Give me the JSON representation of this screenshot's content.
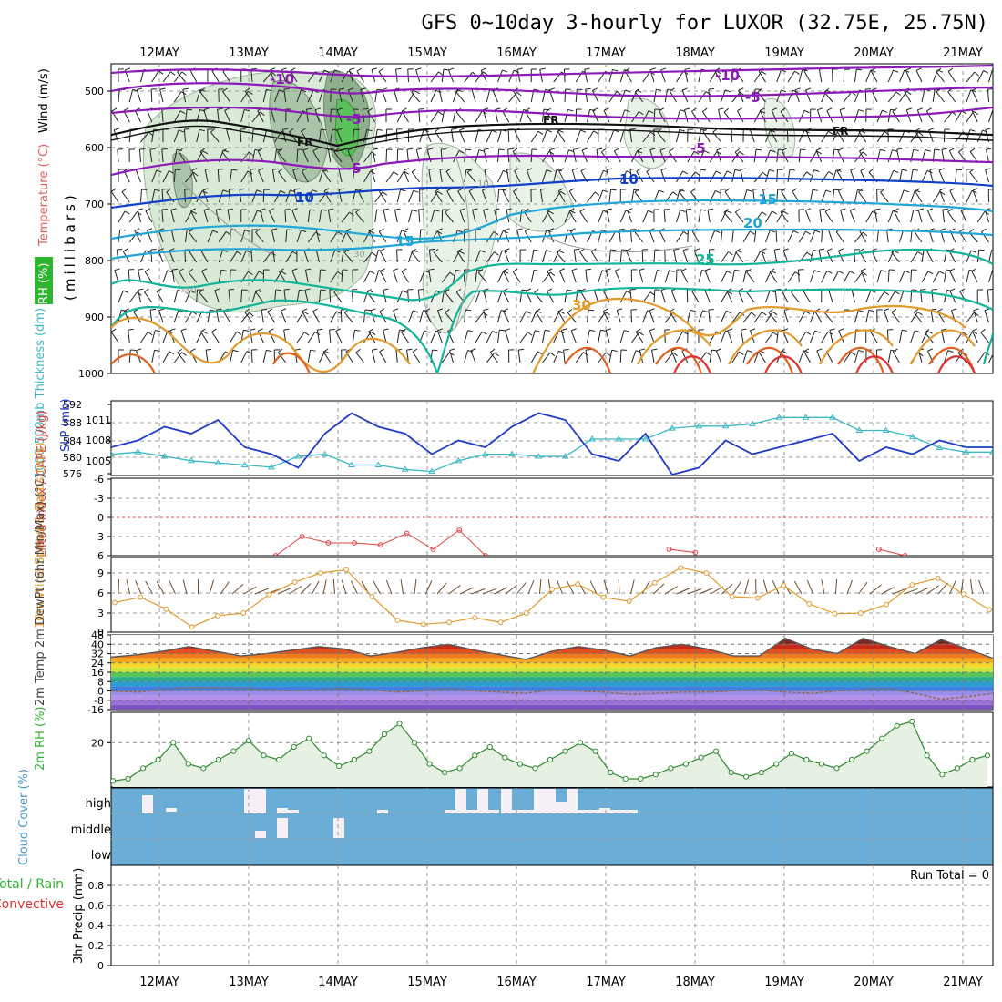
{
  "title": "GFS 0~10day 3-hourly for LUXOR (32.75E, 25.75N)",
  "dates": [
    "12MAY",
    "13MAY",
    "14MAY",
    "15MAY",
    "16MAY",
    "17MAY",
    "18MAY",
    "19MAY",
    "20MAY",
    "21MAY"
  ],
  "colors": {
    "purple": "#8B1AB8",
    "blue": "#1140C8",
    "cyan": "#21A6D8",
    "teal": "#13B59A",
    "orange": "#E39A2C",
    "red": "#E03030",
    "rhGreen": "#2FB52F",
    "cloud": "#6AAED8",
    "thick": "#3BB8C4",
    "slp": "#1E3CC8",
    "cape": "#C36BDB",
    "li": "#E04040"
  },
  "chart_data": [
    {
      "panel": "upper-air",
      "type": "contour",
      "ylabel_parts": {
        "rh": "RH (%)",
        "temp": "Temperature (°C)",
        "wind": "Wind (m/s)",
        "axis": "(millibars)"
      },
      "yticks": [
        "500",
        "600",
        "700",
        "800",
        "900",
        "1000"
      ],
      "labels": [
        "-10",
        "-10",
        "-5",
        "-5",
        "-5",
        "-5",
        "5",
        "FR",
        "FR",
        "FR",
        "10",
        "10",
        "-15",
        "20",
        "25",
        "15",
        "30",
        "30",
        "30",
        "30",
        "10"
      ]
    },
    {
      "panel": "thickness-slp",
      "type": "line",
      "ylabel_left": "1000-500mb Thickness (dm)",
      "ylabel_right": "SLP (mb)",
      "yticks_left": [
        "592",
        "588",
        "584",
        "580",
        "576"
      ],
      "yticks_right": [
        "1011",
        "1008",
        "1005"
      ],
      "series": [
        {
          "name": "SLP (mb)",
          "values": [
            1007,
            1008,
            1010,
            1009,
            1011,
            1007,
            1006,
            1004,
            1009,
            1012,
            1010,
            1009,
            1006,
            1008,
            1007,
            1010,
            1012,
            1011,
            1006,
            1005,
            1009,
            1003,
            1004,
            1008,
            1006,
            1007,
            1008,
            1009,
            1005,
            1007,
            1006,
            1008,
            1007,
            1007
          ]
        },
        {
          "name": "Thickness (dm)",
          "values": [
            580.5,
            581,
            580,
            579,
            578.5,
            578,
            577.5,
            580,
            580.5,
            578,
            578,
            577,
            576.5,
            579,
            580.5,
            580.5,
            580,
            580,
            584,
            584,
            584,
            586.5,
            587,
            587,
            587.5,
            589,
            589,
            589,
            586,
            586,
            584.5,
            582,
            581,
            581
          ]
        }
      ]
    },
    {
      "panel": "lifted-index-cape",
      "type": "line",
      "ylabel": "Lifted Index / CAPE (J/kg)",
      "yticks": [
        "-6",
        "-3",
        "0",
        "3",
        "6"
      ],
      "series": [
        {
          "name": "Lifted Index",
          "values": [
            null,
            null,
            null,
            null,
            null,
            null,
            6,
            3,
            4,
            4,
            4.3,
            2.5,
            5,
            2,
            6,
            null,
            null,
            null,
            null,
            null,
            null,
            5,
            5.5,
            null,
            null,
            null,
            null,
            null,
            null,
            5,
            6,
            null,
            null,
            null
          ]
        }
      ]
    },
    {
      "panel": "10m-wind",
      "type": "line",
      "ylabel": "10m Wind Speed & Barbs (m/s)",
      "yticks": [
        "0",
        "3",
        "6",
        "9"
      ],
      "series": [
        {
          "name": "10m Wind Speed",
          "values": [
            4.5,
            5.3,
            3.5,
            0.8,
            2.5,
            2.9,
            5.7,
            7.6,
            9,
            9.5,
            5.4,
            1.8,
            1.2,
            1.5,
            2.2,
            1.5,
            2.9,
            6.5,
            7.3,
            5.3,
            4.7,
            7.5,
            9.8,
            9,
            5.4,
            5.2,
            7.1,
            4.3,
            2.8,
            2.9,
            4.2,
            7.2,
            8.2,
            5.8,
            3.4
          ]
        }
      ]
    },
    {
      "panel": "2m-temp",
      "type": "area",
      "ylabel": "2m Temp 2m DewPt (6hr Min/Max) (°C)",
      "yticks": [
        "48",
        "40",
        "32",
        "24",
        "16",
        "8",
        "0",
        "-8",
        "-16"
      ],
      "series": [
        {
          "name": "2m Temp",
          "values": [
            29,
            31,
            34,
            38,
            34,
            30,
            32,
            35,
            38,
            36,
            30,
            33,
            37,
            40,
            35,
            31,
            27,
            34,
            38,
            35,
            30,
            37,
            40,
            36,
            30,
            30,
            45,
            36,
            32,
            45,
            38,
            32,
            44,
            36,
            28
          ]
        },
        {
          "name": "2m DewPt",
          "values": [
            0,
            -1,
            1,
            3,
            3,
            2,
            1,
            0,
            1,
            2,
            1,
            -1,
            0,
            2,
            0,
            -1,
            -2,
            1,
            0,
            -1,
            -3,
            -2,
            -1,
            -1,
            0,
            1,
            -1,
            -2,
            0,
            1,
            2,
            -2,
            -7,
            -5,
            -2
          ]
        }
      ]
    },
    {
      "panel": "2m-rh",
      "type": "line",
      "ylabel": "2m RH (%)",
      "yticks": [
        "20"
      ],
      "series": [
        {
          "name": "2m RH",
          "values": [
            2,
            3,
            8,
            12,
            20,
            10,
            8,
            12,
            16,
            21,
            14,
            12,
            18,
            22,
            14,
            9,
            12,
            16,
            24,
            29,
            20,
            10,
            6,
            8,
            14,
            18,
            13,
            10,
            8,
            12,
            16,
            20,
            16,
            6,
            3,
            3,
            5,
            8,
            10,
            13,
            16,
            6,
            4,
            6,
            10,
            15,
            12,
            10,
            8,
            12,
            16,
            22,
            28,
            30,
            14,
            5,
            8,
            12,
            14
          ]
        }
      ]
    },
    {
      "panel": "cloud-cover",
      "type": "heatmap",
      "ylabel": "Cloud Cover (%)",
      "levels": [
        "high",
        "middle",
        "low"
      ]
    },
    {
      "panel": "precip",
      "type": "bar",
      "ylabel": "3hr Precip (mm)",
      "legend": [
        "Total / Rain",
        "Convective"
      ],
      "yticks": [
        "0",
        "0.2",
        "0.4",
        "0.6",
        "0.8"
      ],
      "run_total": "Run Total = 0",
      "values": []
    }
  ]
}
